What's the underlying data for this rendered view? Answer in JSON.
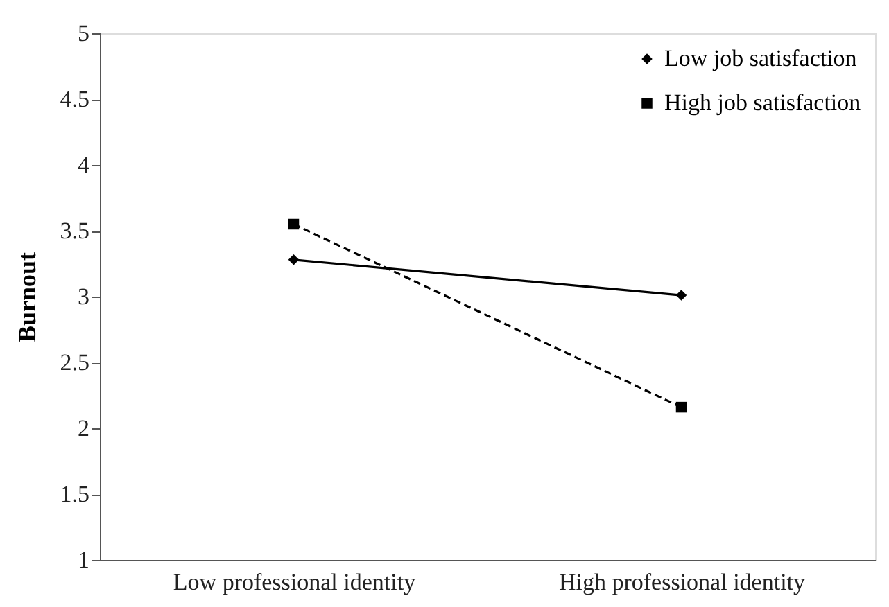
{
  "chart_data": {
    "type": "line",
    "ylabel": "Burnout",
    "categories": [
      "Low professional identity",
      "High professional identity"
    ],
    "series": [
      {
        "name": "Low job satisfaction",
        "color": "#000000",
        "values": [
          3.28,
          3.01
        ],
        "marker": "diamond",
        "line_style": "solid"
      },
      {
        "name": "High job satisfaction",
        "color": "#000000",
        "values": [
          3.55,
          2.16
        ],
        "marker": "square",
        "line_style": "dashed"
      }
    ],
    "ylim": [
      1,
      5
    ],
    "yticks": [
      1,
      1.5,
      2,
      2.5,
      3,
      3.5,
      4,
      4.5,
      5
    ],
    "grid": false,
    "legend": "top right"
  }
}
